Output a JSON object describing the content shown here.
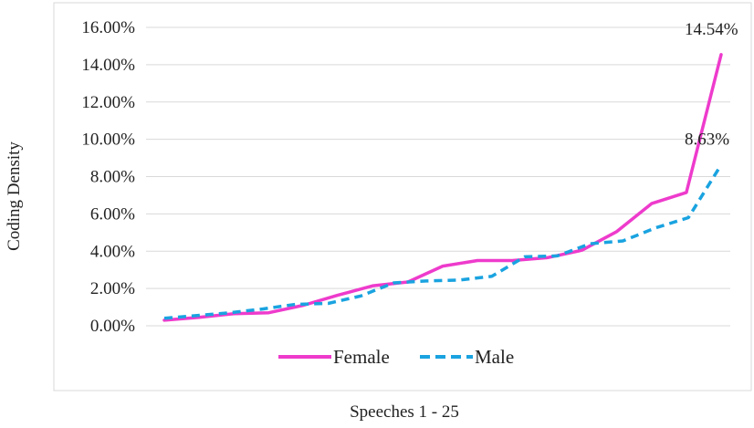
{
  "chart_data": {
    "type": "line",
    "title": "",
    "xlabel": "Speeches 1 - 25",
    "ylabel": "Coding Density",
    "ylim": [
      0,
      16
    ],
    "yticks": [
      "0.00%",
      "2.00%",
      "4.00%",
      "6.00%",
      "8.00%",
      "10.00%",
      "12.00%",
      "14.00%",
      "16.00%"
    ],
    "grid": true,
    "legend_position": "bottom-inside",
    "series": [
      {
        "name": "Female",
        "color": "#ee3bcc",
        "style": "solid",
        "end_label": "14.54%",
        "values": [
          0.3,
          0.45,
          0.65,
          0.7,
          1.1,
          1.65,
          2.15,
          2.35,
          3.2,
          3.5,
          3.5,
          3.65,
          4.05,
          5.05,
          6.55,
          7.15,
          14.54
        ]
      },
      {
        "name": "Male",
        "color": "#1aa3e0",
        "style": "dashed",
        "end_label": "8.63%",
        "values": [
          0.4,
          0.55,
          0.7,
          0.9,
          1.15,
          1.2,
          1.6,
          2.3,
          2.4,
          2.45,
          2.65,
          3.7,
          3.75,
          4.4,
          4.55,
          5.25,
          5.8,
          8.63
        ]
      }
    ]
  }
}
